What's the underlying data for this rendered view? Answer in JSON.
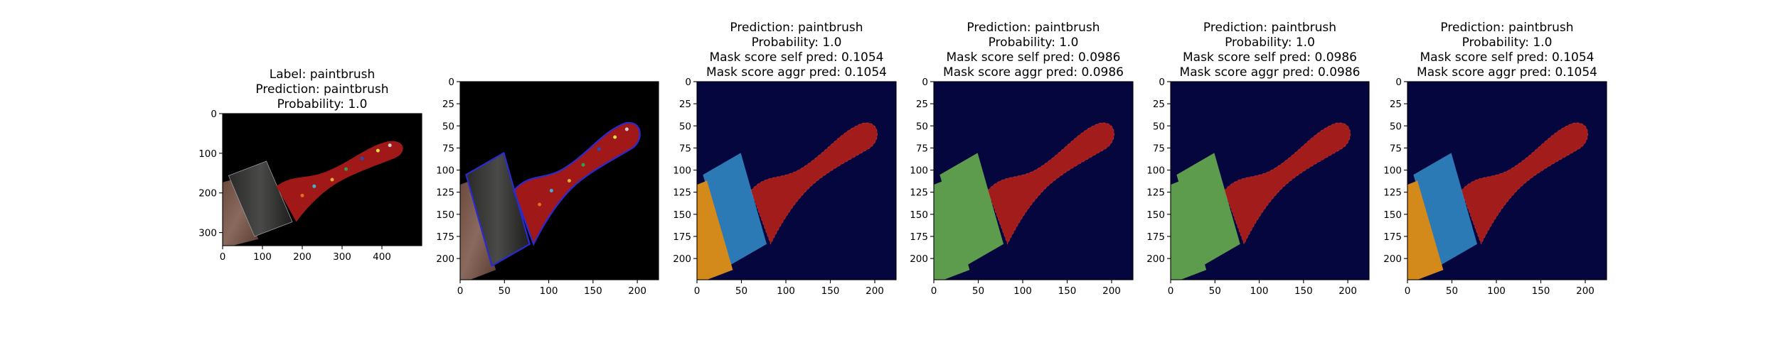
{
  "chart_data": [
    {
      "type": "image",
      "image_content": "paintbrush photo on black background",
      "title_lines": [
        "Label: paintbrush",
        "Prediction: paintbrush",
        "Probability: 1.0"
      ],
      "xticks": [
        0,
        100,
        200,
        300,
        400
      ],
      "yticks": [
        0,
        100,
        200,
        300
      ],
      "xlim": [
        0,
        500
      ],
      "ylim": [
        333,
        0
      ]
    },
    {
      "type": "image",
      "image_content": "paintbrush on black background with blue contour outline",
      "title_lines": [],
      "xticks": [
        0,
        50,
        100,
        150,
        200
      ],
      "yticks": [
        0,
        25,
        50,
        75,
        100,
        125,
        150,
        175,
        200
      ],
      "xlim": [
        0,
        224
      ],
      "ylim": [
        224,
        0
      ]
    },
    {
      "type": "image",
      "image_content": "mask overlay: red handle, blue ferrule, orange bristles, dark navy background",
      "mask_colors": {
        "background": "#06063f",
        "handle": "#a21c1c",
        "ferrule": "#2b7ab5",
        "bristles": "#d4891b"
      },
      "title_lines": [
        "Prediction: paintbrush",
        "Probability: 1.0",
        "Mask score self pred: 0.1054",
        "Mask score aggr pred: 0.1054"
      ],
      "xticks": [
        0,
        50,
        100,
        150,
        200
      ],
      "yticks": [
        0,
        25,
        50,
        75,
        100,
        125,
        150,
        175,
        200
      ],
      "xlim": [
        0,
        224
      ],
      "ylim": [
        224,
        0
      ]
    },
    {
      "type": "image",
      "image_content": "mask overlay: red handle, green ferrule and bristles, dark navy background",
      "mask_colors": {
        "background": "#06063f",
        "handle": "#a21c1c",
        "ferrule": "#5c9c4c",
        "bristles": "#5c9c4c"
      },
      "title_lines": [
        "Prediction: paintbrush",
        "Probability: 1.0",
        "Mask score self pred: 0.0986",
        "Mask score aggr pred: 0.0986"
      ],
      "xticks": [
        0,
        50,
        100,
        150,
        200
      ],
      "yticks": [
        0,
        25,
        50,
        75,
        100,
        125,
        150,
        175,
        200
      ],
      "xlim": [
        0,
        224
      ],
      "ylim": [
        224,
        0
      ]
    },
    {
      "type": "image",
      "image_content": "mask overlay: red handle, green ferrule and bristles, dark navy background",
      "mask_colors": {
        "background": "#06063f",
        "handle": "#a21c1c",
        "ferrule": "#5c9c4c",
        "bristles": "#5c9c4c"
      },
      "title_lines": [
        "Prediction: paintbrush",
        "Probability: 1.0",
        "Mask score self pred: 0.0986",
        "Mask score aggr pred: 0.0986"
      ],
      "xticks": [
        0,
        50,
        100,
        150,
        200
      ],
      "yticks": [
        0,
        25,
        50,
        75,
        100,
        125,
        150,
        175,
        200
      ],
      "xlim": [
        0,
        224
      ],
      "ylim": [
        224,
        0
      ]
    },
    {
      "type": "image",
      "image_content": "mask overlay: red handle, blue ferrule, orange bristles, dark navy background",
      "mask_colors": {
        "background": "#06063f",
        "handle": "#a21c1c",
        "ferrule": "#2b7ab5",
        "bristles": "#d4891b"
      },
      "title_lines": [
        "Prediction: paintbrush",
        "Probability: 1.0",
        "Mask score self pred: 0.1054",
        "Mask score aggr pred: 0.1054"
      ],
      "xticks": [
        0,
        50,
        100,
        150,
        200
      ],
      "yticks": [
        0,
        25,
        50,
        75,
        100,
        125,
        150,
        175,
        200
      ],
      "xlim": [
        0,
        224
      ],
      "ylim": [
        224,
        0
      ]
    }
  ]
}
